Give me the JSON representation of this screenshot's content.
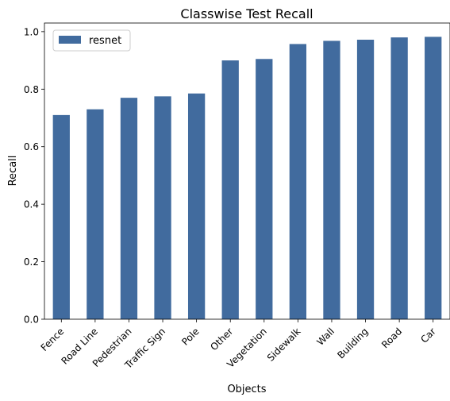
{
  "chart_data": {
    "type": "bar",
    "title": "Classwise Test Recall",
    "xlabel": "Objects",
    "ylabel": "Recall",
    "categories": [
      "Fence",
      "Road Line",
      "Pedestrian",
      "Traffic Sign",
      "Pole",
      "Other",
      "Vegetation",
      "Sidewalk",
      "Wall",
      "Building",
      "Road",
      "Car"
    ],
    "series": [
      {
        "name": "resnet",
        "color": "#416b9e",
        "values": [
          0.71,
          0.73,
          0.77,
          0.775,
          0.785,
          0.9,
          0.905,
          0.957,
          0.968,
          0.972,
          0.98,
          0.982
        ]
      }
    ],
    "ylim": [
      0,
      1.03
    ],
    "yticks": [
      0.0,
      0.2,
      0.4,
      0.6,
      0.8,
      1.0
    ],
    "ytick_labels": [
      "0.0",
      "0.2",
      "0.4",
      "0.6",
      "0.8",
      "1.0"
    ],
    "legend_position": "top-left",
    "grid": false
  }
}
